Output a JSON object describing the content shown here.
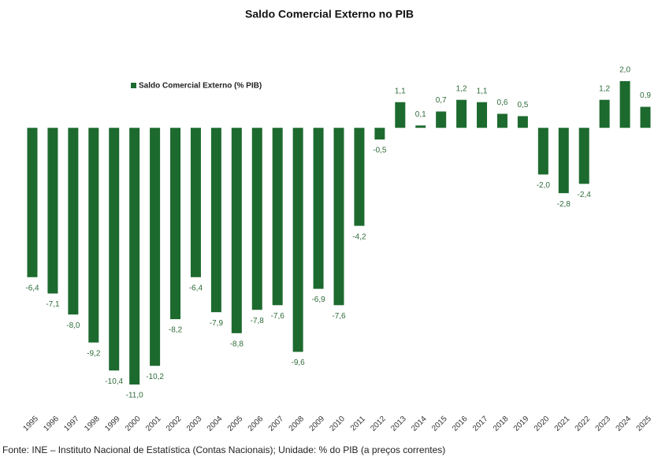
{
  "chart_data": {
    "type": "bar",
    "title": "Saldo Comercial Externo no PIB",
    "source": "Fonte: INE – Instituto Nacional de Estatística (Contas Nacionais); Unidade: % do PIB (a preços correntes)",
    "categories": [
      "1995",
      "1996",
      "1997",
      "1998",
      "1999",
      "2000",
      "2001",
      "2002",
      "2003",
      "2004",
      "2005",
      "2006",
      "2007",
      "2008",
      "2009",
      "2010",
      "2011",
      "2012",
      "2013",
      "2014",
      "2015",
      "2016",
      "2017",
      "2018",
      "2019",
      "2020",
      "2021",
      "2022",
      "2023",
      "2024",
      "2025"
    ],
    "series": [
      {
        "name": "Saldo Comercial Externo (% PIB)",
        "color": "#1d6a2f",
        "values": [
          -6.4,
          -7.1,
          -8.0,
          -9.2,
          -10.4,
          -11.0,
          -10.2,
          -8.2,
          -6.4,
          -7.9,
          -8.8,
          -7.8,
          -7.6,
          -9.6,
          -6.9,
          -7.6,
          -4.2,
          -0.5,
          1.1,
          0.1,
          0.7,
          1.2,
          1.1,
          0.6,
          0.5,
          -2.0,
          -2.8,
          -2.4,
          1.2,
          2.0,
          0.9
        ],
        "value_labels": [
          "-6,4",
          "-7,1",
          "-8,0",
          "-9,2",
          "-10,4",
          "-11,0",
          "-10,2",
          "-8,2",
          "-6,4",
          "-7,9",
          "-8,8",
          "-7,8",
          "-7,6",
          "-9,6",
          "-6,9",
          "-7,6",
          "-4,2",
          "-0,5",
          "1,1",
          "0,1",
          "0,7",
          "1,2",
          "1,1",
          "0,6",
          "0,5",
          "-2,0",
          "-2,8",
          "-2,4",
          "1,2",
          "2,0",
          "0,9"
        ]
      }
    ],
    "legend": "upper left"
  }
}
